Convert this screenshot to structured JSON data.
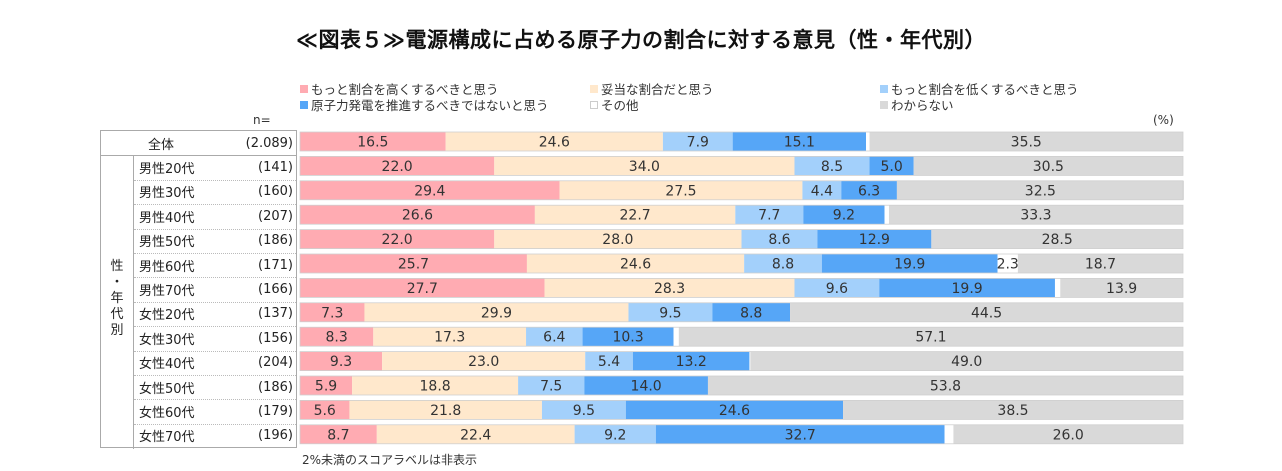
{
  "chart_data": {
    "type": "bar",
    "orientation": "horizontal-stacked-100",
    "title": "≪図表５≫電源構成に占める原子力の割合に対する意見（性・年代別）",
    "n_prefix": "n=",
    "unit_label": "(%)",
    "group_label": [
      "性",
      "・",
      "年",
      "代",
      "別"
    ],
    "footnote": "2%未満のスコアラベルは非表示",
    "label_threshold": 2,
    "legend_position": "top",
    "series": [
      {
        "name": "もっと割合を高くするべきと思う",
        "color": "#ffabb2"
      },
      {
        "name": "妥当な割合だと思う",
        "color": "#ffe8cc"
      },
      {
        "name": "もっと割合を低くするべきと思う",
        "color": "#a3d0fb"
      },
      {
        "name": "原子力発電を推進するべきではないと思う",
        "color": "#56a6f7"
      },
      {
        "name": "その他",
        "color": "#ffffff"
      },
      {
        "name": "わからない",
        "color": "#d9d9d9"
      }
    ],
    "legend_order": [
      0,
      1,
      2,
      3,
      4,
      5
    ],
    "categories": [
      {
        "label": "全体",
        "n": "(2.089)",
        "values": [
          16.5,
          24.6,
          7.9,
          15.1,
          0.4,
          35.5
        ]
      },
      {
        "label": "男性20代",
        "n": "(141)",
        "values": [
          22.0,
          34.0,
          8.5,
          5.0,
          0.0,
          30.5
        ]
      },
      {
        "label": "男性30代",
        "n": "(160)",
        "values": [
          29.4,
          27.5,
          4.4,
          6.3,
          0.0,
          32.5
        ]
      },
      {
        "label": "男性40代",
        "n": "(207)",
        "values": [
          26.6,
          22.7,
          7.7,
          9.2,
          0.5,
          33.3
        ]
      },
      {
        "label": "男性50代",
        "n": "(186)",
        "values": [
          22.0,
          28.0,
          8.6,
          12.9,
          0.0,
          28.5
        ]
      },
      {
        "label": "男性60代",
        "n": "(171)",
        "values": [
          25.7,
          24.6,
          8.8,
          19.9,
          2.3,
          18.7
        ]
      },
      {
        "label": "男性70代",
        "n": "(166)",
        "values": [
          27.7,
          28.3,
          9.6,
          19.9,
          0.6,
          13.9
        ]
      },
      {
        "label": "女性20代",
        "n": "(137)",
        "values": [
          7.3,
          29.9,
          9.5,
          8.8,
          0.0,
          44.5
        ]
      },
      {
        "label": "女性30代",
        "n": "(156)",
        "values": [
          8.3,
          17.3,
          6.4,
          10.3,
          0.6,
          57.1
        ]
      },
      {
        "label": "女性40代",
        "n": "(204)",
        "values": [
          9.3,
          23.0,
          5.4,
          13.2,
          0.1,
          49.0
        ]
      },
      {
        "label": "女性50代",
        "n": "(186)",
        "values": [
          5.9,
          18.8,
          7.5,
          14.0,
          0.0,
          53.8
        ]
      },
      {
        "label": "女性60代",
        "n": "(179)",
        "values": [
          5.6,
          21.8,
          9.5,
          24.6,
          0.0,
          38.5
        ]
      },
      {
        "label": "女性70代",
        "n": "(196)",
        "values": [
          8.7,
          22.4,
          9.2,
          32.7,
          1.0,
          26.0
        ]
      }
    ],
    "xlim": [
      0,
      100
    ]
  }
}
